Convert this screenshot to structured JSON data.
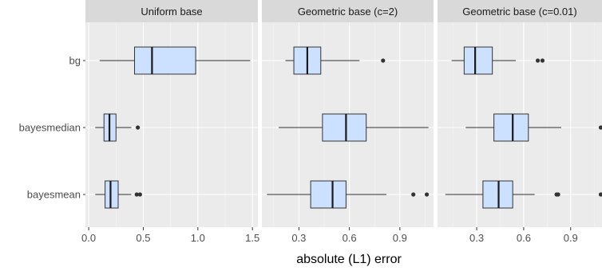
{
  "chart_data": {
    "type": "boxplot",
    "xlabel": "absolute (L1) error",
    "box_fill": "#cce0ff",
    "categories": [
      "bg",
      "bayesmedian",
      "bayesmean"
    ],
    "panels": [
      {
        "title": "Uniform base",
        "xlim": [
          -0.03,
          1.55
        ],
        "ticks": [
          0.0,
          0.5,
          1.0,
          1.5
        ],
        "tick_labels": [
          "0.0",
          "0.5",
          "1.0",
          "1.5"
        ],
        "boxes": [
          {
            "category": "bg",
            "whisker_low": 0.1,
            "q1": 0.42,
            "median": 0.58,
            "q3": 0.98,
            "whisker_high": 1.48,
            "outliers": []
          },
          {
            "category": "bayesmedian",
            "whisker_low": 0.06,
            "q1": 0.14,
            "median": 0.19,
            "q3": 0.25,
            "whisker_high": 0.39,
            "outliers": [
              0.45
            ]
          },
          {
            "category": "bayesmean",
            "whisker_low": 0.06,
            "q1": 0.15,
            "median": 0.2,
            "q3": 0.27,
            "whisker_high": 0.39,
            "outliers": [
              0.44,
              0.47
            ]
          }
        ]
      },
      {
        "title": "Geometric base (c=2)",
        "xlim": [
          0.08,
          1.1
        ],
        "ticks": [
          0.3,
          0.6,
          0.9
        ],
        "tick_labels": [
          "0.3",
          "0.6",
          "0.9"
        ],
        "boxes": [
          {
            "category": "bg",
            "whisker_low": 0.22,
            "q1": 0.27,
            "median": 0.35,
            "q3": 0.43,
            "whisker_high": 0.66,
            "outliers": [
              0.8
            ]
          },
          {
            "category": "bayesmedian",
            "whisker_low": 0.18,
            "q1": 0.44,
            "median": 0.58,
            "q3": 0.7,
            "whisker_high": 1.07,
            "outliers": []
          },
          {
            "category": "bayesmean",
            "whisker_low": 0.11,
            "q1": 0.37,
            "median": 0.5,
            "q3": 0.58,
            "whisker_high": 0.82,
            "outliers": [
              0.98,
              1.06
            ]
          }
        ]
      },
      {
        "title": "Geometric base (c=0.01)",
        "xlim": [
          0.05,
          1.1
        ],
        "ticks": [
          0.3,
          0.6,
          0.9
        ],
        "tick_labels": [
          "0.3",
          "0.6",
          "0.9"
        ],
        "boxes": [
          {
            "category": "bg",
            "whisker_low": 0.14,
            "q1": 0.22,
            "median": 0.29,
            "q3": 0.4,
            "whisker_high": 0.55,
            "outliers": [
              0.69,
              0.72
            ]
          },
          {
            "category": "bayesmedian",
            "whisker_low": 0.23,
            "q1": 0.41,
            "median": 0.53,
            "q3": 0.63,
            "whisker_high": 0.84,
            "outliers": [
              1.1
            ]
          },
          {
            "category": "bayesmean",
            "whisker_low": 0.1,
            "q1": 0.34,
            "median": 0.44,
            "q3": 0.53,
            "whisker_high": 0.67,
            "outliers": [
              0.81,
              0.82,
              1.1
            ]
          }
        ]
      }
    ]
  }
}
